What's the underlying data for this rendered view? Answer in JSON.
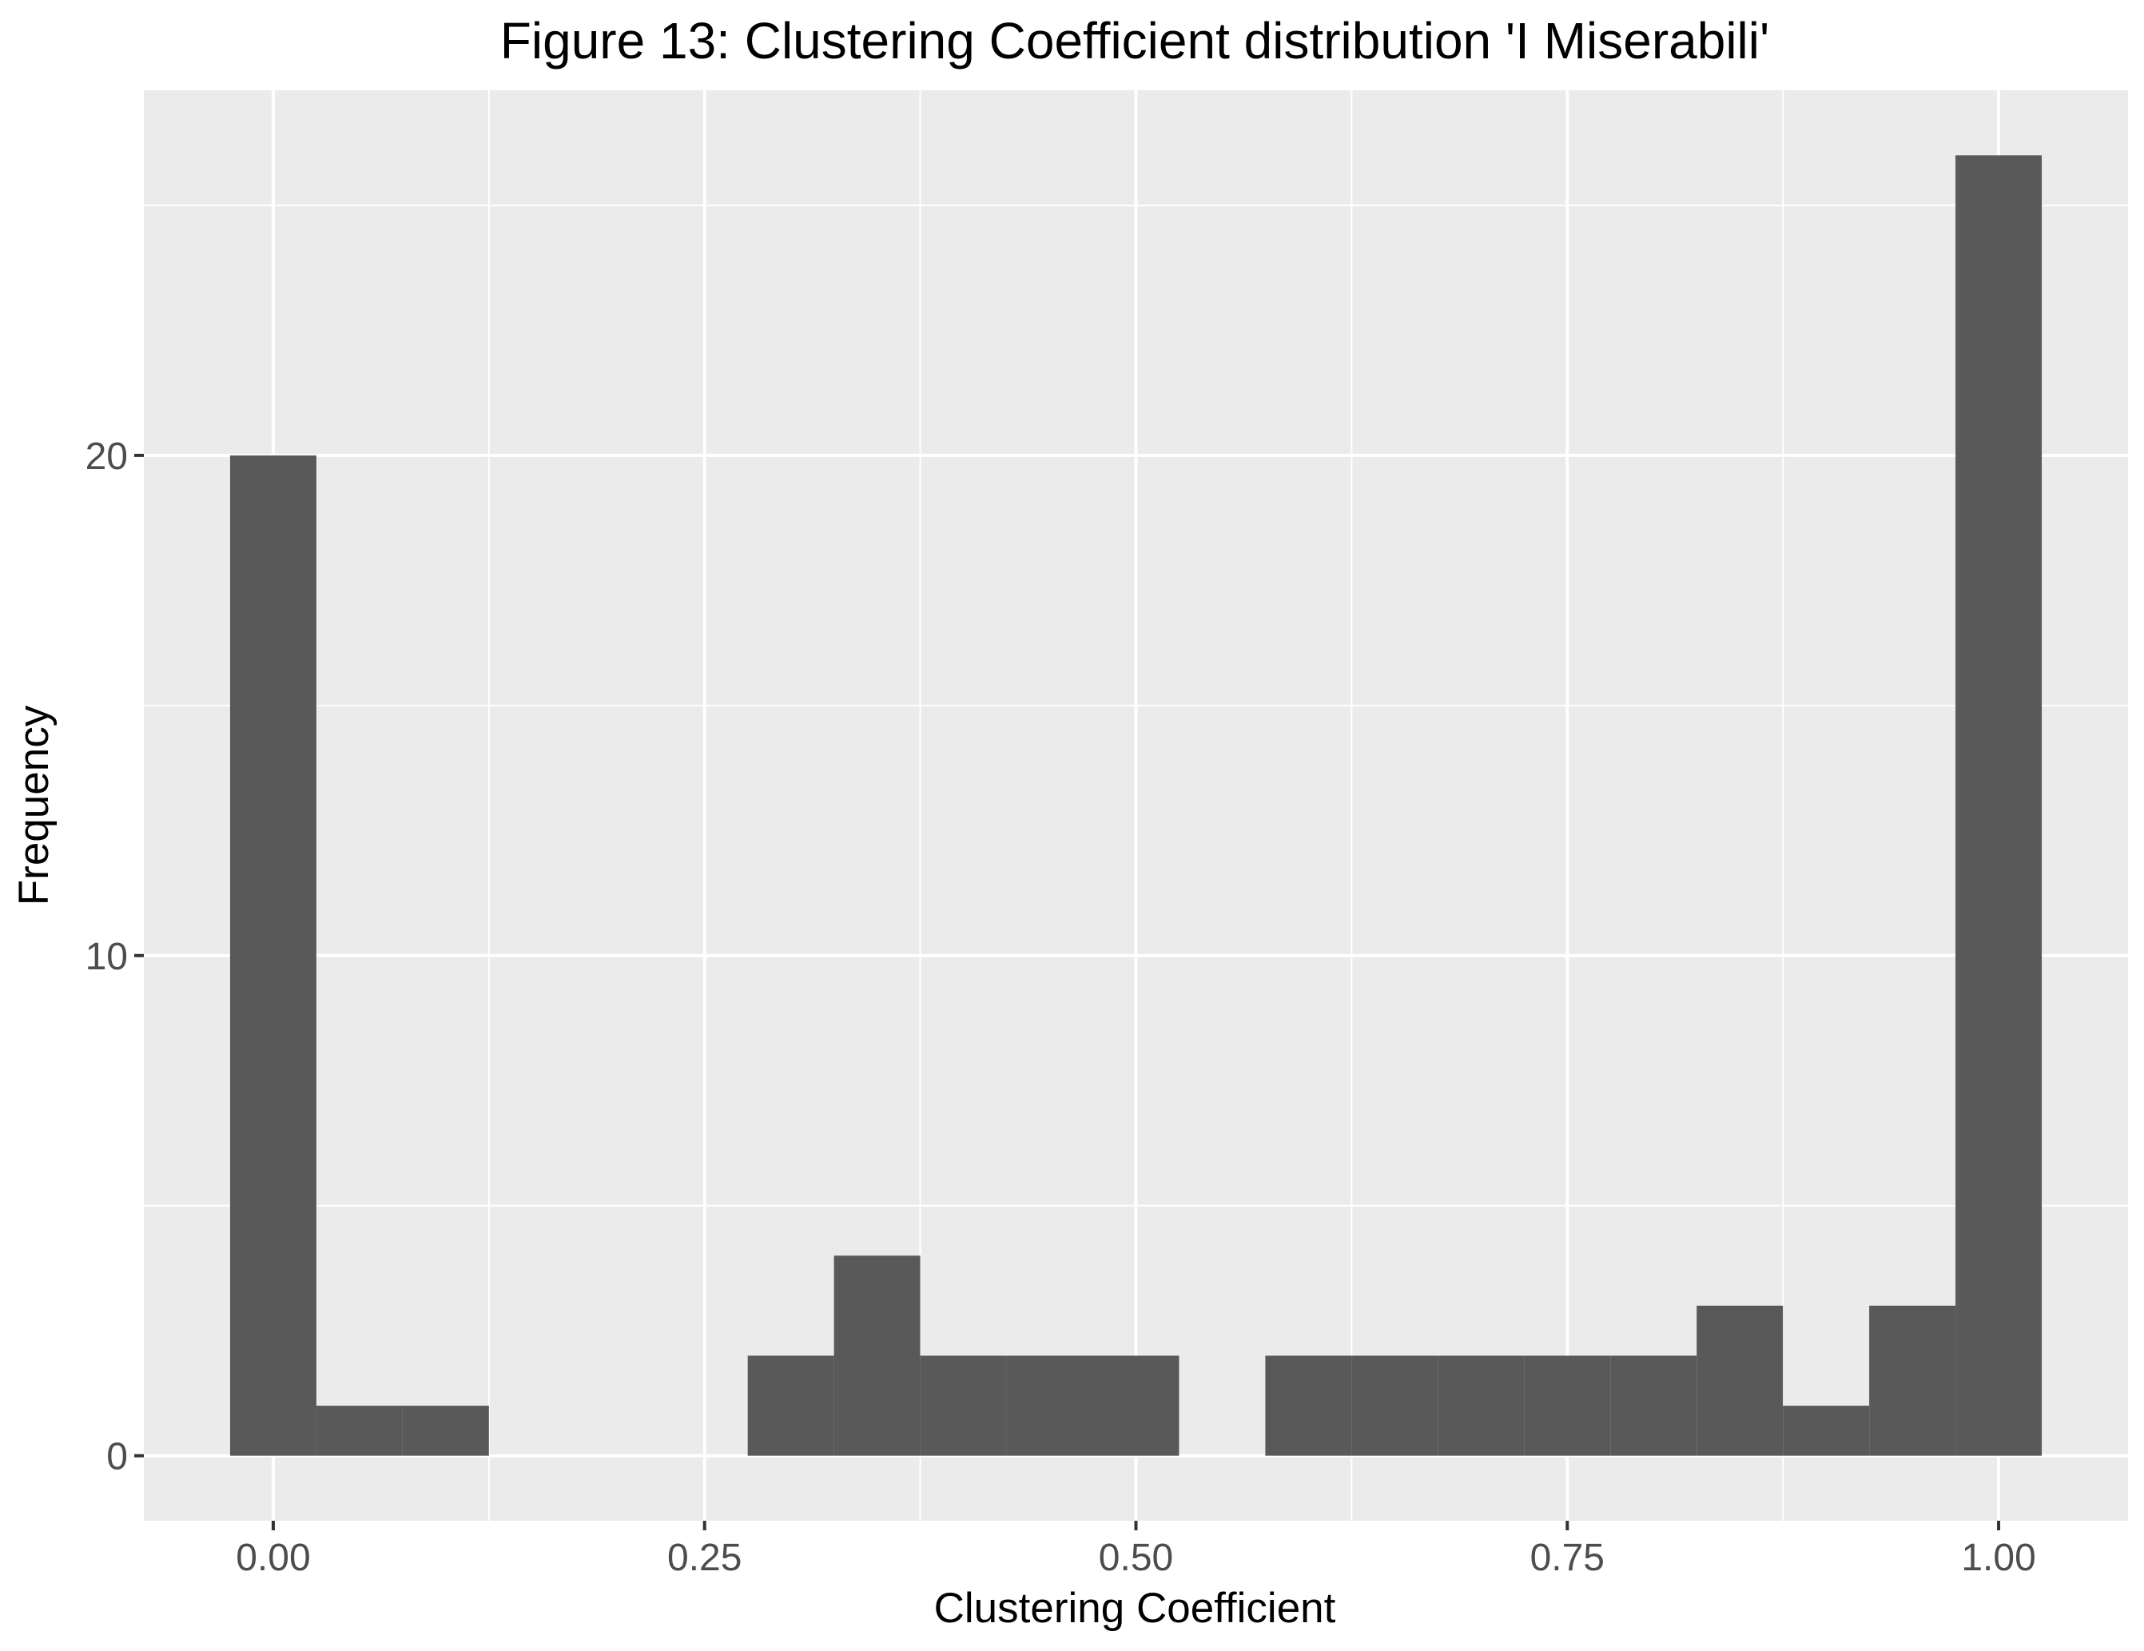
{
  "chart_data": {
    "type": "bar",
    "title": "Figure 13: Clustering Coefficient distribution 'I Miserabili'",
    "xlabel": "Clustering Coefficient",
    "ylabel": "Frequency",
    "x_ticks": [
      "0.00",
      "0.25",
      "0.50",
      "0.75",
      "1.00"
    ],
    "y_ticks": [
      "0",
      "10",
      "20"
    ],
    "bin_width": 0.05,
    "bins": [
      {
        "x": 0.0,
        "count": 20
      },
      {
        "x": 0.05,
        "count": 1
      },
      {
        "x": 0.1,
        "count": 1
      },
      {
        "x": 0.15,
        "count": 0
      },
      {
        "x": 0.2,
        "count": 0
      },
      {
        "x": 0.25,
        "count": 0
      },
      {
        "x": 0.3,
        "count": 2
      },
      {
        "x": 0.35,
        "count": 4
      },
      {
        "x": 0.4,
        "count": 2
      },
      {
        "x": 0.45,
        "count": 2
      },
      {
        "x": 0.5,
        "count": 2
      },
      {
        "x": 0.55,
        "count": 0
      },
      {
        "x": 0.6,
        "count": 2
      },
      {
        "x": 0.65,
        "count": 2
      },
      {
        "x": 0.7,
        "count": 2
      },
      {
        "x": 0.75,
        "count": 2
      },
      {
        "x": 0.8,
        "count": 2
      },
      {
        "x": 0.85,
        "count": 3
      },
      {
        "x": 0.9,
        "count": 1
      },
      {
        "x": 0.95,
        "count": 3
      },
      {
        "x": 1.0,
        "count": 26
      }
    ],
    "xlim": [
      -0.075,
      1.075
    ],
    "ylim": [
      -1.3,
      27.3
    ],
    "colors": {
      "panel_background": "#ebebeb",
      "bar_fill": "#595959",
      "grid": "#ffffff"
    }
  }
}
